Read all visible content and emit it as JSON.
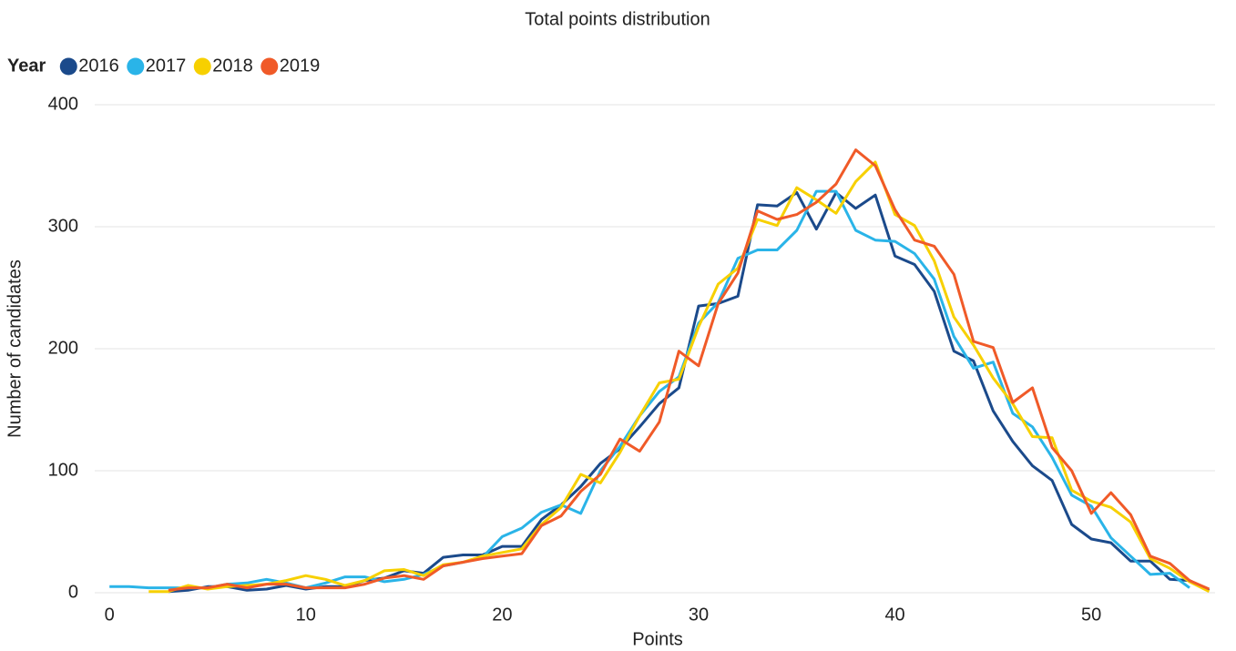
{
  "chart_data": {
    "type": "line",
    "title": "Total points distribution",
    "x_label": "Points",
    "y_label": "Number of candidates",
    "legend_title": "Year",
    "x": [
      0,
      1,
      2,
      3,
      4,
      5,
      6,
      7,
      8,
      9,
      10,
      11,
      12,
      13,
      14,
      15,
      16,
      17,
      18,
      19,
      20,
      21,
      22,
      23,
      24,
      25,
      26,
      27,
      28,
      29,
      30,
      31,
      32,
      33,
      34,
      35,
      36,
      37,
      38,
      39,
      40,
      41,
      42,
      43,
      44,
      45,
      46,
      47,
      48,
      49,
      50,
      51,
      52,
      53,
      54,
      55,
      56
    ],
    "series": [
      {
        "name": "2016",
        "color": "#1b4a8b",
        "values": [
          null,
          null,
          null,
          1,
          2,
          5,
          5,
          2,
          3,
          6,
          3,
          5,
          5,
          10,
          12,
          18,
          16,
          29,
          31,
          31,
          38,
          38,
          60,
          72,
          87,
          106,
          118,
          136,
          155,
          168,
          235,
          237,
          243,
          318,
          317,
          328,
          298,
          328,
          315,
          326,
          276,
          269,
          247,
          198,
          190,
          149,
          124,
          104,
          92,
          56,
          44,
          41,
          26,
          26,
          11,
          10,
          2
        ]
      },
      {
        "name": "2017",
        "color": "#2ab4e8",
        "values": [
          5,
          5,
          4,
          4,
          4,
          4,
          7,
          8,
          11,
          8,
          4,
          8,
          13,
          13,
          9,
          11,
          15,
          22,
          25,
          29,
          46,
          53,
          66,
          72,
          65,
          100,
          120,
          145,
          165,
          177,
          221,
          238,
          274,
          281,
          281,
          297,
          329,
          329,
          297,
          289,
          288,
          278,
          257,
          210,
          184,
          189,
          147,
          136,
          111,
          80,
          71,
          45,
          30,
          15,
          16,
          4,
          null
        ]
      },
      {
        "name": "2018",
        "color": "#f7d000",
        "values": [
          null,
          null,
          1,
          1,
          6,
          3,
          5,
          6,
          7,
          10,
          14,
          11,
          6,
          10,
          18,
          19,
          14,
          23,
          25,
          30,
          33,
          36,
          56,
          70,
          97,
          90,
          115,
          145,
          172,
          175,
          218,
          253,
          266,
          306,
          301,
          332,
          322,
          311,
          337,
          353,
          310,
          301,
          272,
          226,
          203,
          176,
          155,
          128,
          127,
          84,
          75,
          70,
          58,
          28,
          20,
          9,
          1
        ]
      },
      {
        "name": "2019",
        "color": "#f05a28",
        "values": [
          null,
          null,
          null,
          2,
          4,
          4,
          7,
          4,
          7,
          7,
          4,
          4,
          4,
          7,
          12,
          14,
          11,
          22,
          25,
          28,
          30,
          32,
          55,
          63,
          83,
          97,
          126,
          116,
          140,
          198,
          186,
          237,
          262,
          313,
          306,
          310,
          320,
          335,
          363,
          350,
          314,
          289,
          284,
          261,
          206,
          201,
          156,
          168,
          119,
          100,
          65,
          82,
          64,
          30,
          24,
          10,
          3
        ]
      }
    ],
    "xlim": [
      -0.75,
      56.3
    ],
    "xticks": [
      0,
      10,
      20,
      30,
      40,
      50
    ],
    "ylim": [
      0,
      400
    ],
    "yticks": [
      0,
      100,
      200,
      300,
      400
    ],
    "grid": true
  }
}
